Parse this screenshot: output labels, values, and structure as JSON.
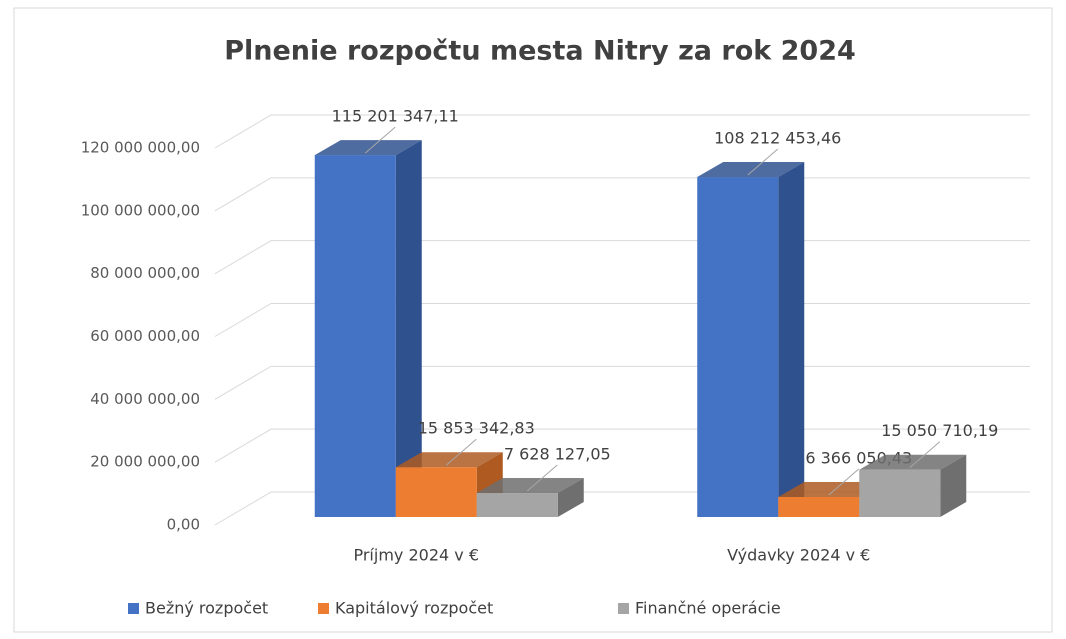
{
  "chart_data": {
    "type": "bar3d",
    "title": "Plnenie rozpočtu mesta Nitry za rok 2024",
    "categories": [
      "Príjmy 2024 v €",
      "Výdavky 2024 v €"
    ],
    "series": [
      {
        "name": "Bežný rozpočet",
        "color": "#4472c4",
        "side": "#2f528f",
        "values": [
          115201347.11,
          108212453.46
        ],
        "value_labels": [
          "115 201 347,11",
          "108 212 453,46"
        ]
      },
      {
        "name": "Kapitálový rozpočet",
        "color": "#ed7d31",
        "side": "#ae5a21",
        "values": [
          15853342.83,
          6366050.43
        ],
        "value_labels": [
          "15 853 342,83",
          "6 366 050,43"
        ]
      },
      {
        "name": "Finančné operácie",
        "color": "#a5a5a5",
        "side": "#6f6f6f",
        "values": [
          7628127.05,
          15050710.19
        ],
        "value_labels": [
          "7 628 127,05",
          "15 050 710,19"
        ]
      }
    ],
    "ylim": [
      0,
      120000000
    ],
    "yticks": [
      {
        "value": 0,
        "label": "0,00"
      },
      {
        "value": 20000000,
        "label": "20 000 000,00"
      },
      {
        "value": 40000000,
        "label": "40 000 000,00"
      },
      {
        "value": 60000000,
        "label": "60 000 000,00"
      },
      {
        "value": 80000000,
        "label": "80 000 000,00"
      },
      {
        "value": 100000000,
        "label": "100 000 000,00"
      },
      {
        "value": 120000000,
        "label": "120 000 000,00"
      }
    ],
    "grid": true,
    "legend": "bottom"
  }
}
